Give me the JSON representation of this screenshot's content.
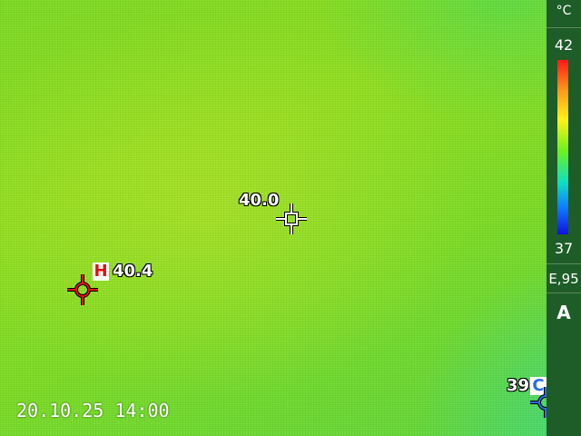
{
  "image": {
    "timestamp": "20.10.25 14:00"
  },
  "measurements": {
    "center": {
      "value": "40.0"
    },
    "hot": {
      "badge": "H",
      "value": "40.4"
    },
    "cold": {
      "badge": "C",
      "value": "39.0"
    }
  },
  "sidebar": {
    "unit": "°C",
    "scale_max": "42",
    "scale_min": "37",
    "emissivity": "E,95",
    "mode": "A"
  },
  "colors": {
    "hot_marker": "#e01010",
    "cold_marker": "#2a6de0",
    "sidebar_bg": "#1e5c28",
    "scene_green": "#7edc20"
  }
}
